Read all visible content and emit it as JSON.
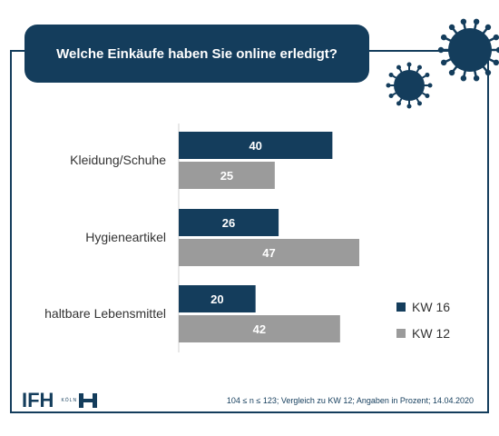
{
  "header": {
    "title": "Welche Einkäufe haben Sie online erledigt?"
  },
  "colors": {
    "kw16": "#143d5c",
    "kw12": "#9b9b9b",
    "frame": "#143d5c"
  },
  "chart_data": {
    "type": "bar",
    "orientation": "horizontal",
    "title": "Welche Einkäufe haben Sie online erledigt?",
    "categories": [
      "Kleidung/Schuhe",
      "Hygieneartikel",
      "haltbare Lebensmittel"
    ],
    "series": [
      {
        "name": "KW 16",
        "values": [
          40,
          26,
          20
        ]
      },
      {
        "name": "KW 12",
        "values": [
          25,
          47,
          42
        ]
      }
    ],
    "xlim": [
      0,
      47
    ],
    "grid": false,
    "legend_position": "right"
  },
  "footer": {
    "logo": "IFH",
    "logo_sub": "KÖLN",
    "note": "104 ≤ n ≤ 123; Vergleich zu KW 12; Angaben in Prozent; 14.04.2020"
  }
}
